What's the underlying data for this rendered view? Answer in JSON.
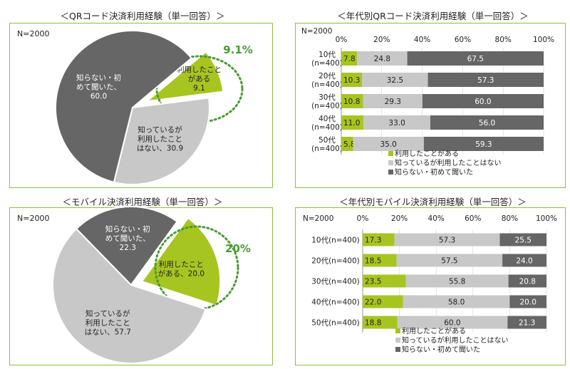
{
  "panels": [
    {
      "title": "＜QRコード決済利用経験（単一回答）＞"
    },
    {
      "title": "＜年代別QRコード決済利用経験（単一回答）＞"
    },
    {
      "title": "＜モバイル決済利用経験（単一回答）＞"
    },
    {
      "title": "＜年代別モバイル決済利用経験（単一回答）＞"
    }
  ],
  "colors": {
    "used": "#a7c520",
    "known": "#c8c8c8",
    "unknown": "#666666",
    "border": "#8dbf3f",
    "accent_text": "#4a9a34"
  },
  "chart_data": [
    {
      "type": "pie",
      "title": "＜QRコード決済利用経験（単一回答）＞",
      "n_label": "N=2000",
      "slices": [
        {
          "key": "used",
          "label_lines": [
            "利用したこと",
            "がある",
            "9.1"
          ],
          "value": 9.1,
          "color": "#a7c520",
          "exploded": true
        },
        {
          "key": "known",
          "label_lines": [
            "知っているが",
            "利用したこと",
            "はない、30.9"
          ],
          "value": 30.9,
          "color": "#c8c8c8",
          "exploded": false
        },
        {
          "key": "unknown",
          "label_lines": [
            "知らない・初",
            "めて聞いた、",
            "60.0"
          ],
          "value": 60.0,
          "color": "#666666",
          "exploded": false
        }
      ],
      "highlight": "9.1%"
    },
    {
      "type": "bar",
      "stacked": "100%",
      "orientation": "horizontal",
      "title": "＜年代別QRコード決済利用経験（単一回答）＞",
      "n_label": "N=2000",
      "categories": [
        "10代\n(n=400)",
        "20代\n(n=400)",
        "30代\n(n=400)",
        "40代\n(n=400)",
        "50代\n(n=400)"
      ],
      "xticks": [
        "0%",
        "20%",
        "40%",
        "60%",
        "80%",
        "100%"
      ],
      "xlim": [
        0,
        100
      ],
      "series": [
        {
          "name": "利用したことがある",
          "color": "#a7c520",
          "values": [
            7.8,
            10.3,
            10.8,
            11.0,
            5.8
          ]
        },
        {
          "name": "知っているが利用したことはない",
          "color": "#c8c8c8",
          "values": [
            24.8,
            32.5,
            29.3,
            33.0,
            35.0
          ]
        },
        {
          "name": "知らない・初めて聞いた",
          "color": "#666666",
          "values": [
            67.5,
            57.3,
            60.0,
            56.0,
            59.3
          ]
        }
      ]
    },
    {
      "type": "pie",
      "title": "＜モバイル決済利用経験（単一回答）＞",
      "n_label": "N=2000",
      "slices": [
        {
          "key": "used",
          "label_lines": [
            "利用したこと",
            "がある、20.0"
          ],
          "value": 20.0,
          "color": "#a7c520",
          "exploded": true
        },
        {
          "key": "known",
          "label_lines": [
            "知っているが",
            "利用したこと",
            "はない、57.7"
          ],
          "value": 57.7,
          "color": "#c8c8c8",
          "exploded": false
        },
        {
          "key": "unknown",
          "label_lines": [
            "知らない・初",
            "めて聞いた、",
            "22.3"
          ],
          "value": 22.3,
          "color": "#666666",
          "exploded": false
        }
      ],
      "highlight": "20%"
    },
    {
      "type": "bar",
      "stacked": "100%",
      "orientation": "horizontal",
      "title": "＜年代別モバイル決済利用経験（単一回答）＞",
      "n_label": "N=2000",
      "categories": [
        "10代(n=400)",
        "20代(n=400)",
        "30代(n=400)",
        "40代(n=400)",
        "50代(n=400)"
      ],
      "xticks": [
        "0%",
        "20%",
        "40%",
        "60%",
        "80%",
        "100%"
      ],
      "xlim": [
        0,
        100
      ],
      "series": [
        {
          "name": "利用したことがある",
          "color": "#a7c520",
          "values": [
            17.3,
            18.5,
            23.5,
            22.0,
            18.8
          ]
        },
        {
          "name": "知っているが利用したことはない",
          "color": "#c8c8c8",
          "values": [
            57.3,
            57.5,
            55.8,
            58.0,
            60.0
          ]
        },
        {
          "name": "知らない・初めて聞いた",
          "color": "#666666",
          "values": [
            25.5,
            24.0,
            20.8,
            20.0,
            21.3
          ]
        }
      ]
    }
  ]
}
